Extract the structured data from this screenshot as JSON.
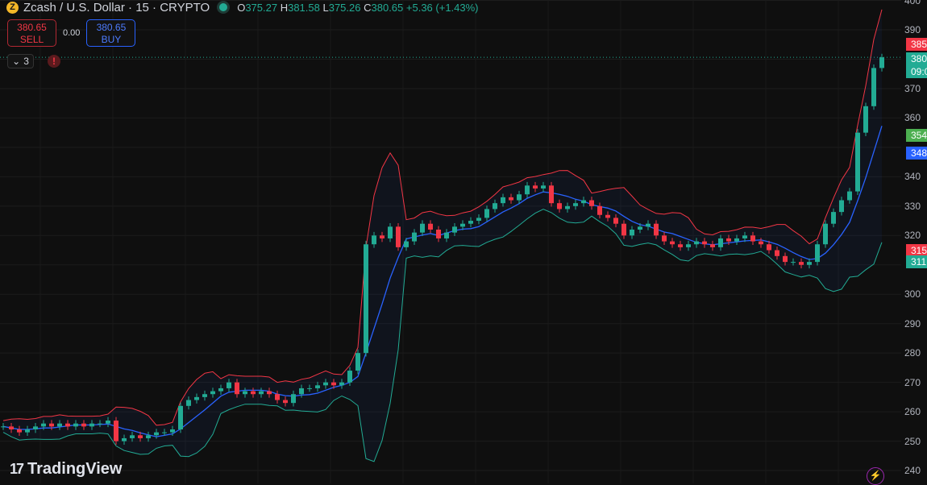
{
  "header": {
    "symbol_title": "Zcash / U.S. Dollar · 15 · CRYPTO",
    "coin_glyph": "Z",
    "ohlc": {
      "o_label": "O",
      "o": "375.27",
      "h_label": "H",
      "h": "381.58",
      "l_label": "L",
      "l": "375.26",
      "c_label": "C",
      "c": "380.65",
      "change": "+5.36 (+1.43%)"
    }
  },
  "trade": {
    "sell_price": "380.65",
    "sell_label": "SELL",
    "spread": "0.00",
    "buy_price": "380.65",
    "buy_label": "BUY"
  },
  "indicators": {
    "collapse_count": "3",
    "warning": "!"
  },
  "price_axis": {
    "labels": [
      "400",
      "390",
      "370",
      "360",
      "340",
      "330",
      "320",
      "300",
      "290",
      "280",
      "270",
      "260",
      "250",
      "240"
    ]
  },
  "badges": [
    {
      "text": "385",
      "color": "#f23645"
    },
    {
      "text": "380",
      "color": "#22ab94"
    },
    {
      "text": "09:0",
      "color": "#22ab94"
    },
    {
      "text": "354",
      "color": "#4caf50"
    },
    {
      "text": "348",
      "color": "#2962ff"
    },
    {
      "text": "315",
      "color": "#f23645"
    },
    {
      "text": "311",
      "color": "#22ab94"
    }
  ],
  "branding": {
    "logo_text": "TradingView",
    "logo_mark": "17"
  },
  "chart_data": {
    "type": "candlestick",
    "ylim": [
      240,
      400
    ],
    "colors": {
      "up": "#22ab94",
      "down": "#f23645",
      "ma": "#2962ff",
      "upper": "#f23645",
      "lower": "#22ab94"
    },
    "closes": [
      255,
      254,
      253,
      254,
      255,
      256,
      255,
      256,
      255,
      256,
      255,
      256,
      256,
      257,
      250,
      251,
      252,
      251,
      252,
      253,
      253,
      254,
      262,
      264,
      265,
      266,
      267,
      268,
      270,
      266,
      267,
      266,
      267,
      266,
      264,
      263,
      266,
      268,
      268,
      269,
      270,
      269,
      270,
      274,
      280,
      317,
      320,
      319,
      323,
      316,
      318,
      321,
      324,
      322,
      319,
      321,
      323,
      324,
      325,
      326,
      329,
      331,
      333,
      332,
      334,
      337,
      336,
      337,
      331,
      329,
      330,
      331,
      332,
      330,
      327,
      326,
      324,
      320,
      322,
      323,
      324,
      320,
      318,
      317,
      316,
      317,
      318,
      317,
      316,
      319,
      318,
      319,
      320,
      318,
      317,
      315,
      313,
      311,
      311,
      310,
      311,
      317,
      324,
      328,
      332,
      335,
      355,
      364,
      377,
      380.65
    ],
    "last_price": 380.65
  }
}
